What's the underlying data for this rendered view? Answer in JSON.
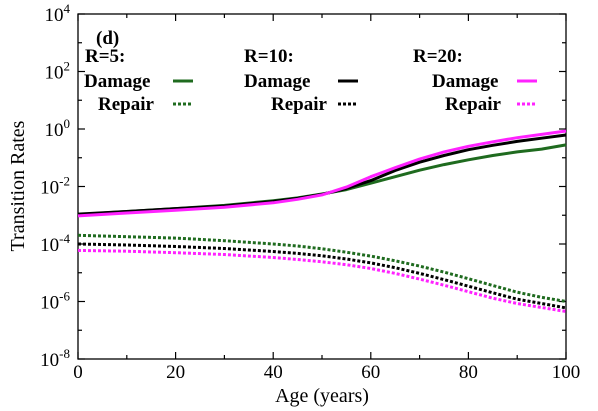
{
  "chart_data": {
    "type": "line",
    "panel_label": "(d)",
    "xlabel": "Age (years)",
    "ylabel": "Transition Rates",
    "xlim": [
      0,
      100
    ],
    "ylim_log10": [
      -8,
      4
    ],
    "yscale": "log",
    "x_ticks": [
      {
        "value": 0,
        "label": "0"
      },
      {
        "value": 20,
        "label": "20"
      },
      {
        "value": 40,
        "label": "40"
      },
      {
        "value": 60,
        "label": "60"
      },
      {
        "value": 80,
        "label": "80"
      },
      {
        "value": 100,
        "label": "100"
      }
    ],
    "y_ticks": [
      {
        "exp": -8,
        "base": "10",
        "sup": "-8"
      },
      {
        "exp": -6,
        "base": "10",
        "sup": "-6"
      },
      {
        "exp": -4,
        "base": "10",
        "sup": "-4"
      },
      {
        "exp": -2,
        "base": "10",
        "sup": "-2"
      },
      {
        "exp": 0,
        "base": "10",
        "sup": "0"
      },
      {
        "exp": 2,
        "base": "10",
        "sup": "2"
      },
      {
        "exp": 4,
        "base": "10",
        "sup": "4"
      }
    ],
    "legend_groups": [
      {
        "title": "R=5:",
        "color": "#1f6b1f",
        "damage_label": "Damage",
        "repair_label": "Repair"
      },
      {
        "title": "R=10:",
        "color": "#000000",
        "damage_label": "Damage",
        "repair_label": "Repair"
      },
      {
        "title": "R=20:",
        "color": "#ff22ff",
        "damage_label": "Damage",
        "repair_label": "Repair"
      }
    ],
    "x": [
      0,
      10,
      20,
      30,
      40,
      45,
      50,
      55,
      60,
      65,
      70,
      75,
      80,
      85,
      90,
      95,
      100
    ],
    "series": [
      {
        "group": "R=5:",
        "kind": "Damage",
        "color": "#1f6b1f",
        "dash": false,
        "values": [
          0.00105,
          0.00135,
          0.0017,
          0.0022,
          0.0032,
          0.004,
          0.0055,
          0.0078,
          0.013,
          0.022,
          0.037,
          0.058,
          0.085,
          0.12,
          0.16,
          0.2,
          0.28
        ]
      },
      {
        "group": "R=10:",
        "kind": "Damage",
        "color": "#000000",
        "dash": false,
        "values": [
          0.0011,
          0.00135,
          0.0017,
          0.0021,
          0.003,
          0.0039,
          0.0053,
          0.0085,
          0.016,
          0.036,
          0.07,
          0.12,
          0.19,
          0.27,
          0.37,
          0.48,
          0.62
        ]
      },
      {
        "group": "R=20:",
        "kind": "Damage",
        "color": "#ff22ff",
        "dash": false,
        "values": [
          0.00095,
          0.0012,
          0.0015,
          0.0019,
          0.0027,
          0.0036,
          0.0051,
          0.0095,
          0.022,
          0.045,
          0.09,
          0.16,
          0.25,
          0.36,
          0.5,
          0.65,
          0.85
        ]
      },
      {
        "group": "R=5:",
        "kind": "Repair",
        "color": "#1f6b1f",
        "dash": true,
        "values": [
          0.0002,
          0.00018,
          0.00016,
          0.00013,
          0.0001,
          8.5e-05,
          6.8e-05,
          5.2e-05,
          3.8e-05,
          2.6e-05,
          1.7e-05,
          1.05e-05,
          6.2e-06,
          3.6e-06,
          2.1e-06,
          1.4e-06,
          1e-06
        ]
      },
      {
        "group": "R=10:",
        "kind": "Repair",
        "color": "#000000",
        "dash": true,
        "values": [
          0.0001,
          9.2e-05,
          8.2e-05,
          7e-05,
          5.5e-05,
          4.7e-05,
          3.9e-05,
          3e-05,
          2.2e-05,
          1.5e-05,
          9.5e-06,
          5.8e-06,
          3.4e-06,
          2e-06,
          1.2e-06,
          8.5e-07,
          6e-07
        ]
      },
      {
        "group": "R=20:",
        "kind": "Repair",
        "color": "#ff22ff",
        "dash": true,
        "values": [
          6e-05,
          5.6e-05,
          5e-05,
          4.3e-05,
          3.4e-05,
          2.9e-05,
          2.4e-05,
          1.9e-05,
          1.4e-05,
          9.5e-06,
          6e-06,
          3.7e-06,
          2.2e-06,
          1.3e-06,
          8.5e-07,
          6.2e-07,
          4.5e-07
        ]
      }
    ]
  }
}
